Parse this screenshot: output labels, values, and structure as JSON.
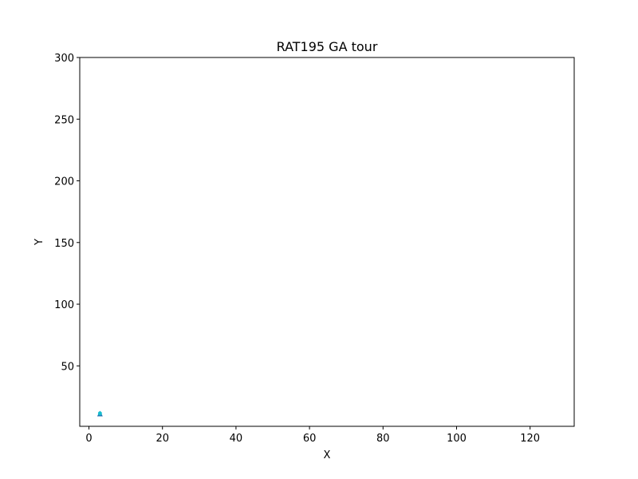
{
  "chart_data": {
    "type": "scatter",
    "title": "RAT195 GA tour",
    "xlabel": "X",
    "ylabel": "Y",
    "xlim": [
      -2.5,
      132
    ],
    "ylim": [
      1,
      300
    ],
    "xticks": [
      0,
      20,
      40,
      60,
      80,
      100,
      120
    ],
    "yticks": [
      50,
      100,
      150,
      200,
      250,
      300
    ],
    "grid": false,
    "series": [
      {
        "marker": "triangle",
        "color": "#1f77b4",
        "points": [
          [
            3,
            11
          ]
        ]
      },
      {
        "marker": "dot",
        "color": "#17becf",
        "points": [
          [
            3,
            11.5
          ]
        ]
      }
    ]
  }
}
